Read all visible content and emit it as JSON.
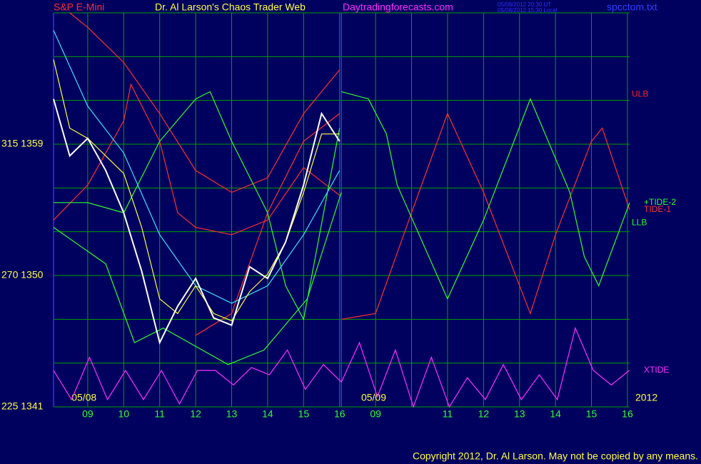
{
  "chart_data": {
    "type": "line",
    "title": "Dr. Al Larson's Chaos Trader Web",
    "instrument": "S&P E-Mini",
    "site": "Daytradingforecasts.com",
    "timestamps": [
      "05/08/2012 20:30 UT",
      "05/08/2012 15:30 Local"
    ],
    "file": "spcctom.txt",
    "date_labels": [
      {
        "value": -0.45,
        "label": "05/08"
      },
      {
        "value": 7.6,
        "label": "05/09"
      }
    ],
    "year": "2012",
    "copyright": "Copyright 2012, Dr. Al Larson. May not be copied by any means.",
    "xlim": [
      -0.95,
      15.06
    ],
    "ylim": [
      1341,
      1368
    ],
    "day_divider": 7.05,
    "grid": true,
    "xticks": [
      {
        "value": 0,
        "label": "09"
      },
      {
        "value": 1,
        "label": "10"
      },
      {
        "value": 2,
        "label": "11"
      },
      {
        "value": 3,
        "label": "12"
      },
      {
        "value": 4,
        "label": "13"
      },
      {
        "value": 5,
        "label": "14"
      },
      {
        "value": 6,
        "label": "15"
      },
      {
        "value": 7,
        "label": "16"
      },
      {
        "value": 8,
        "label": "09"
      },
      {
        "value": 9,
        "label": null
      },
      {
        "value": 10,
        "label": "11"
      },
      {
        "value": 11,
        "label": "12"
      },
      {
        "value": 12,
        "label": "13"
      },
      {
        "value": 13,
        "label": "14"
      },
      {
        "value": 14,
        "label": "15"
      },
      {
        "value": 15,
        "label": "16"
      }
    ],
    "yticks": [
      {
        "value": 1341,
        "label": "225  1341"
      },
      {
        "value": 1344,
        "label": null
      },
      {
        "value": 1347,
        "label": null
      },
      {
        "value": 1350,
        "label": "270  1350"
      },
      {
        "value": 1353,
        "label": null
      },
      {
        "value": 1356,
        "label": null
      },
      {
        "value": 1359,
        "label": "315  1359"
      },
      {
        "value": 1362,
        "label": null
      },
      {
        "value": 1365,
        "label": null
      },
      {
        "value": 1368,
        "label": null
      }
    ],
    "annotations": [
      {
        "text": "ULB",
        "value": 1362.4,
        "color": "#ff2020"
      },
      {
        "text": "LLB",
        "value": 1353.6,
        "color": "#20ff20"
      }
    ],
    "series": [
      {
        "color": "#ff3030",
        "x": [
          -0.5,
          0,
          1,
          2,
          3,
          4,
          5,
          6,
          7
        ],
        "values": [
          1368.0,
          1367.0,
          1364.6,
          1361.1,
          1357.2,
          1355.7,
          1356.7,
          1361.1,
          1364.1
        ]
      },
      {
        "color": "#ff3030",
        "x": [
          -0.95,
          0,
          1,
          1.2,
          2,
          2.5,
          3,
          4,
          5,
          6,
          7
        ],
        "values": [
          1353.8,
          1356.2,
          1360.6,
          1363.1,
          1359.2,
          1354.3,
          1353.3,
          1352.8,
          1353.8,
          1357.4,
          1355.5
        ]
      },
      {
        "color": "#ff3030",
        "x": [
          3,
          4,
          5,
          6,
          7
        ],
        "values": [
          1345.9,
          1347.4,
          1354.3,
          1359.2,
          1361.1
        ]
      },
      {
        "color": "#30ff30",
        "x": [
          -0.95,
          0,
          1,
          2,
          3,
          3.4,
          4,
          5,
          5.5,
          6,
          7
        ],
        "values": [
          1355.0,
          1355.0,
          1354.3,
          1359.2,
          1362.1,
          1362.6,
          1359.2,
          1354.3,
          1349.3,
          1347.0,
          1360.1
        ]
      },
      {
        "color": "#30ff30",
        "x": [
          -0.95,
          0.5,
          1.3,
          2.1,
          3.9,
          4.9,
          6.1,
          7.05
        ],
        "values": [
          1353.3,
          1350.8,
          1345.4,
          1346.4,
          1343.9,
          1344.9,
          1348.4,
          1355.7
        ]
      },
      {
        "color": "#40e0ff",
        "x": [
          -0.95,
          0,
          1,
          2,
          3,
          4,
          5,
          6,
          7
        ],
        "values": [
          1366.8,
          1361.6,
          1358.4,
          1352.8,
          1349.3,
          1348.1,
          1349.3,
          1352.8,
          1357.2
        ]
      },
      {
        "color": "#ffff40",
        "x": [
          -0.95,
          -0.5,
          0,
          1,
          1.5,
          2,
          2.5,
          3,
          3.5,
          4,
          4.5,
          5,
          5.5,
          6,
          6.5,
          7
        ],
        "values": [
          1364.8,
          1360.1,
          1359.4,
          1357.0,
          1353.3,
          1348.4,
          1347.4,
          1349.3,
          1347.4,
          1346.9,
          1348.9,
          1350.1,
          1352.3,
          1355.7,
          1359.7,
          1359.7
        ]
      },
      {
        "color": "#ffffff",
        "x": [
          -0.95,
          -0.5,
          0,
          0.5,
          1,
          1.5,
          2,
          2.5,
          3,
          3.5,
          4,
          4.5,
          5,
          5.5,
          6,
          6.5,
          7
        ],
        "values": [
          1362.1,
          1358.2,
          1359.4,
          1357.2,
          1354.3,
          1350.3,
          1345.4,
          1347.9,
          1349.8,
          1347.1,
          1346.6,
          1350.6,
          1349.8,
          1352.3,
          1356.2,
          1361.1,
          1359.2
        ]
      },
      {
        "name": "TIDE-1",
        "color": "#ff3030",
        "x": [
          7.05,
          8,
          9,
          10,
          11,
          12,
          12.3,
          13,
          14,
          14.3,
          15.06
        ],
        "values": [
          1347.0,
          1347.4,
          1354.3,
          1361.1,
          1355.7,
          1349.3,
          1347.4,
          1352.8,
          1359.2,
          1360.1,
          1354.5
        ]
      },
      {
        "name": "+TIDE-2",
        "color": "#30ff30",
        "x": [
          7.05,
          7.8,
          8.3,
          8.6,
          10,
          11,
          12.3,
          13.4,
          13.8,
          14.2,
          15.06
        ],
        "values": [
          1362.6,
          1362.1,
          1359.7,
          1356.2,
          1348.4,
          1353.8,
          1362.1,
          1355.7,
          1351.3,
          1349.3,
          1355.0
        ]
      },
      {
        "name": "XTIDE",
        "color": "#ff30ff",
        "x": [
          -0.95,
          -0.45,
          0.05,
          0.55,
          1.05,
          1.55,
          2.05,
          2.55,
          3.05,
          3.55,
          4.05,
          4.55,
          5.05,
          5.55,
          6.05,
          6.55,
          7.05,
          7.55,
          8.05,
          8.55,
          9.05,
          9.55,
          10.05,
          10.55,
          11.05,
          11.55,
          12.05,
          12.55,
          13.05,
          13.55,
          14.05,
          14.55,
          15.05
        ],
        "values": [
          1343.5,
          1341.5,
          1344.4,
          1341.5,
          1343.5,
          1341.5,
          1343.5,
          1341.2,
          1343.5,
          1343.5,
          1342.5,
          1343.7,
          1343.2,
          1344.9,
          1342.2,
          1343.9,
          1342.7,
          1345.4,
          1341.7,
          1344.9,
          1341.0,
          1344.4,
          1341.0,
          1343.0,
          1341.5,
          1343.9,
          1341.5,
          1343.2,
          1341.5,
          1346.4,
          1343.5,
          1342.5,
          1343.5
        ]
      }
    ]
  }
}
